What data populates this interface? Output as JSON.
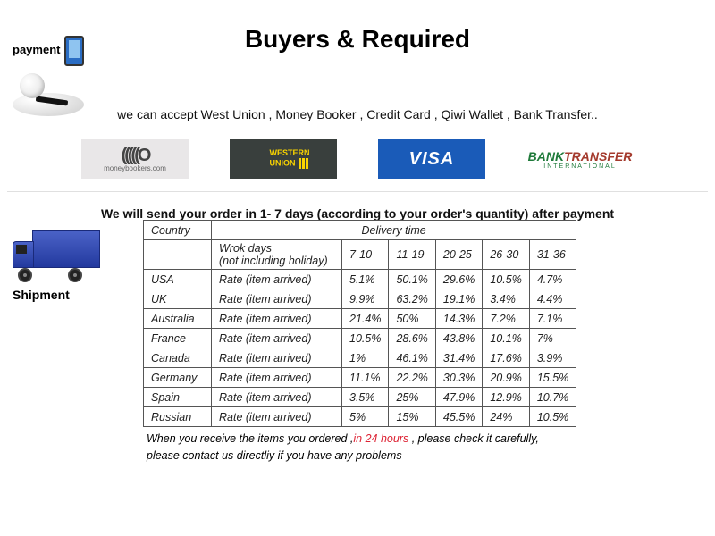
{
  "title": "Buyers & Required",
  "payment_label": "payment",
  "accept_line": "we can accept West Union , Money Booker , Credit Card , Qiwi Wallet , Bank Transfer..",
  "logos": {
    "mb_arcs": "(((((O",
    "mb_text": "moneybookers.com",
    "wu_line1": "WESTERN",
    "wu_line2": "UNION",
    "visa": "VISA",
    "bt_bank": "BANK",
    "bt_trans": "TRANSFER",
    "bt_intl": "INTERNATIONAL"
  },
  "send_line": "We will send your order in 1- 7 days (according to your order's quantity) after payment",
  "shipment_label": "Shipment",
  "table": {
    "header_country": "Country",
    "header_delivery": "Delivery time",
    "workdays_l1": "Wrok days",
    "workdays_l2": "(not including holiday)",
    "rate_label": "Rate (item arrived)",
    "ranges": [
      "7-10",
      "11-19",
      "20-25",
      "26-30",
      "31-36"
    ],
    "rows": [
      {
        "country": "USA",
        "vals": [
          "5.1%",
          "50.1%",
          "29.6%",
          "10.5%",
          "4.7%"
        ]
      },
      {
        "country": "UK",
        "vals": [
          "9.9%",
          "63.2%",
          "19.1%",
          "3.4%",
          "4.4%"
        ]
      },
      {
        "country": "Australia",
        "vals": [
          "21.4%",
          "50%",
          "14.3%",
          "7.2%",
          "7.1%"
        ]
      },
      {
        "country": "France",
        "vals": [
          "10.5%",
          "28.6%",
          "43.8%",
          "10.1%",
          "7%"
        ]
      },
      {
        "country": "Canada",
        "vals": [
          "1%",
          "46.1%",
          "31.4%",
          "17.6%",
          "3.9%"
        ]
      },
      {
        "country": "Germany",
        "vals": [
          "11.1%",
          "22.2%",
          "30.3%",
          "20.9%",
          "15.5%"
        ]
      },
      {
        "country": "Spain",
        "vals": [
          "3.5%",
          "25%",
          "47.9%",
          "12.9%",
          "10.7%"
        ]
      },
      {
        "country": "Russian",
        "vals": [
          "5%",
          "15%",
          "45.5%",
          "24%",
          "10.5%"
        ]
      }
    ]
  },
  "footer": {
    "part1": "When you receive the items you ordered ,",
    "red": "in 24 hours",
    "part2": " , please check it carefully,",
    "line2": "please contact us directliy if you have any problems"
  }
}
